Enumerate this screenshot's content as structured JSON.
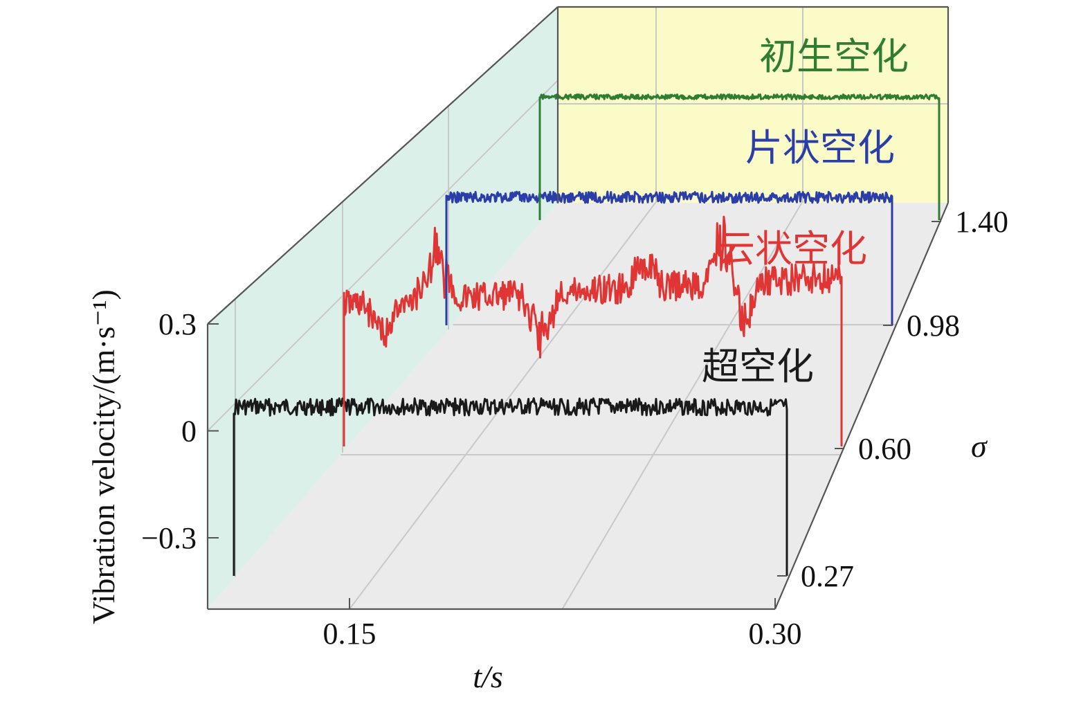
{
  "chart_data": {
    "type": "line",
    "subtype": "3d-waterfall",
    "title": "",
    "xlabel": "t/s",
    "ylabel": "Vibration velocity/(m·s⁻¹)",
    "zlabel": "σ",
    "xlim": [
      0.1,
      0.3
    ],
    "ylim": [
      -0.5,
      0.3
    ],
    "x_ticks": [
      "0.15",
      "0.30"
    ],
    "y_ticks": [
      "0.3",
      "0",
      "−0.3"
    ],
    "z_ticks": [
      "0.27",
      "0.60",
      "0.98",
      "1.40"
    ],
    "grid": true,
    "series": [
      {
        "name": "超空化",
        "sigma": 0.27,
        "color": "#1a1a1a",
        "t_range": [
          0.11,
          0.3
        ],
        "mean": 0.06,
        "noise": 0.03,
        "spikes": []
      },
      {
        "name": "云状空化",
        "sigma": 0.6,
        "color": "#e03535",
        "t_range": [
          0.11,
          0.3
        ],
        "mean": 0.08,
        "noise": 0.06,
        "spikes": [
          [
            0.125,
            -0.1
          ],
          [
            0.145,
            0.14
          ],
          [
            0.185,
            -0.13
          ],
          [
            0.225,
            0.08
          ],
          [
            0.255,
            0.14
          ],
          [
            0.262,
            -0.14
          ]
        ]
      },
      {
        "name": "片状空化",
        "sigma": 0.98,
        "color": "#2a3da8",
        "t_range": [
          0.11,
          0.3
        ],
        "mean": 0.07,
        "noise": 0.025,
        "spikes": []
      },
      {
        "name": "初生空化",
        "sigma": 1.4,
        "color": "#2f7d32",
        "t_range": [
          0.11,
          0.3
        ],
        "mean": 0.05,
        "noise": 0.012,
        "spikes": []
      }
    ],
    "colors": {
      "back_wall": "#fbfbc8",
      "side_wall": "#dcf0ea",
      "floor": "#ebebeb",
      "frame": "#555555"
    }
  }
}
